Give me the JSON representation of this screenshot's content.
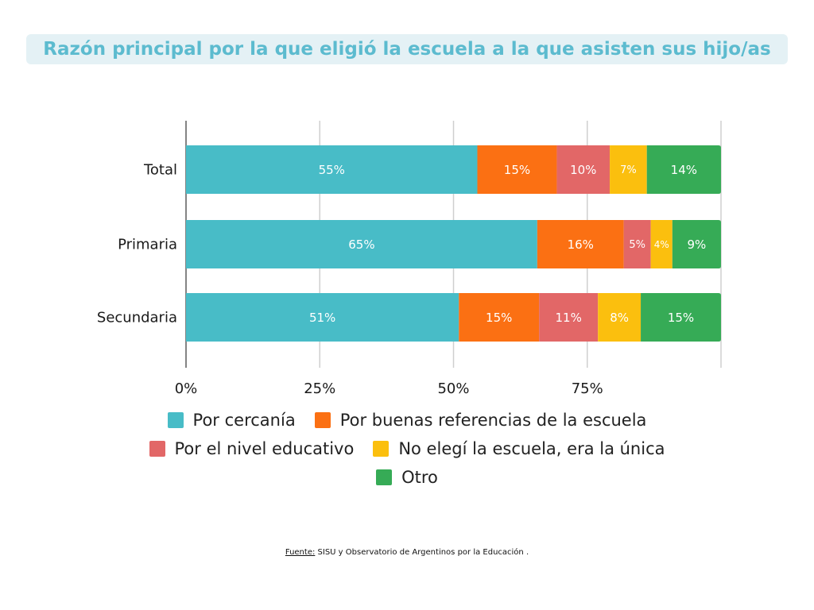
{
  "title": "Razón principal por la que eligió la escuela a la que asisten sus hijo/as",
  "colors": {
    "title_bg": "#e4f1f5",
    "title_text": "#5cbbcf"
  },
  "chart_data": {
    "type": "bar",
    "orientation": "horizontal",
    "stacked": true,
    "categories": [
      "Total",
      "Primaria",
      "Secundaria"
    ],
    "series": [
      {
        "name": "Por cercanía",
        "color": "#48bcc7",
        "values": [
          55,
          65,
          51
        ]
      },
      {
        "name": "Por buenas referencias de la escuela",
        "color": "#fb7013",
        "values": [
          15,
          16,
          15
        ]
      },
      {
        "name": "Por el nivel educativo",
        "color": "#e26767",
        "values": [
          10,
          5,
          11
        ]
      },
      {
        "name": "No elegí la escuela, era la única",
        "color": "#fbbf0e",
        "values": [
          7,
          4,
          8
        ]
      },
      {
        "name": "Otro",
        "color": "#36ab56",
        "values": [
          14,
          9,
          15
        ]
      }
    ],
    "data_labels": [
      [
        "55%",
        "15%",
        "10%",
        "7%",
        "14%"
      ],
      [
        "65%",
        "16%",
        "5%",
        "4%",
        "9%"
      ],
      [
        "51%",
        "15%",
        "11%",
        "8%",
        "15%"
      ]
    ],
    "xlim": [
      0,
      100
    ],
    "xticks": [
      0,
      25,
      50,
      75
    ],
    "xtick_labels": [
      "0%",
      "25%",
      "50%",
      "75%"
    ],
    "grid": true,
    "legend_position": "bottom",
    "title": "Razón principal por la que eligió la escuela a la que asisten sus hijo/as"
  },
  "legend": {
    "rows": [
      [
        0,
        1
      ],
      [
        2,
        3
      ],
      [
        4
      ]
    ]
  },
  "source": {
    "prefix": "Fuente:",
    "text": " SISU y Observatorio de Argentinos por la Educación ."
  }
}
